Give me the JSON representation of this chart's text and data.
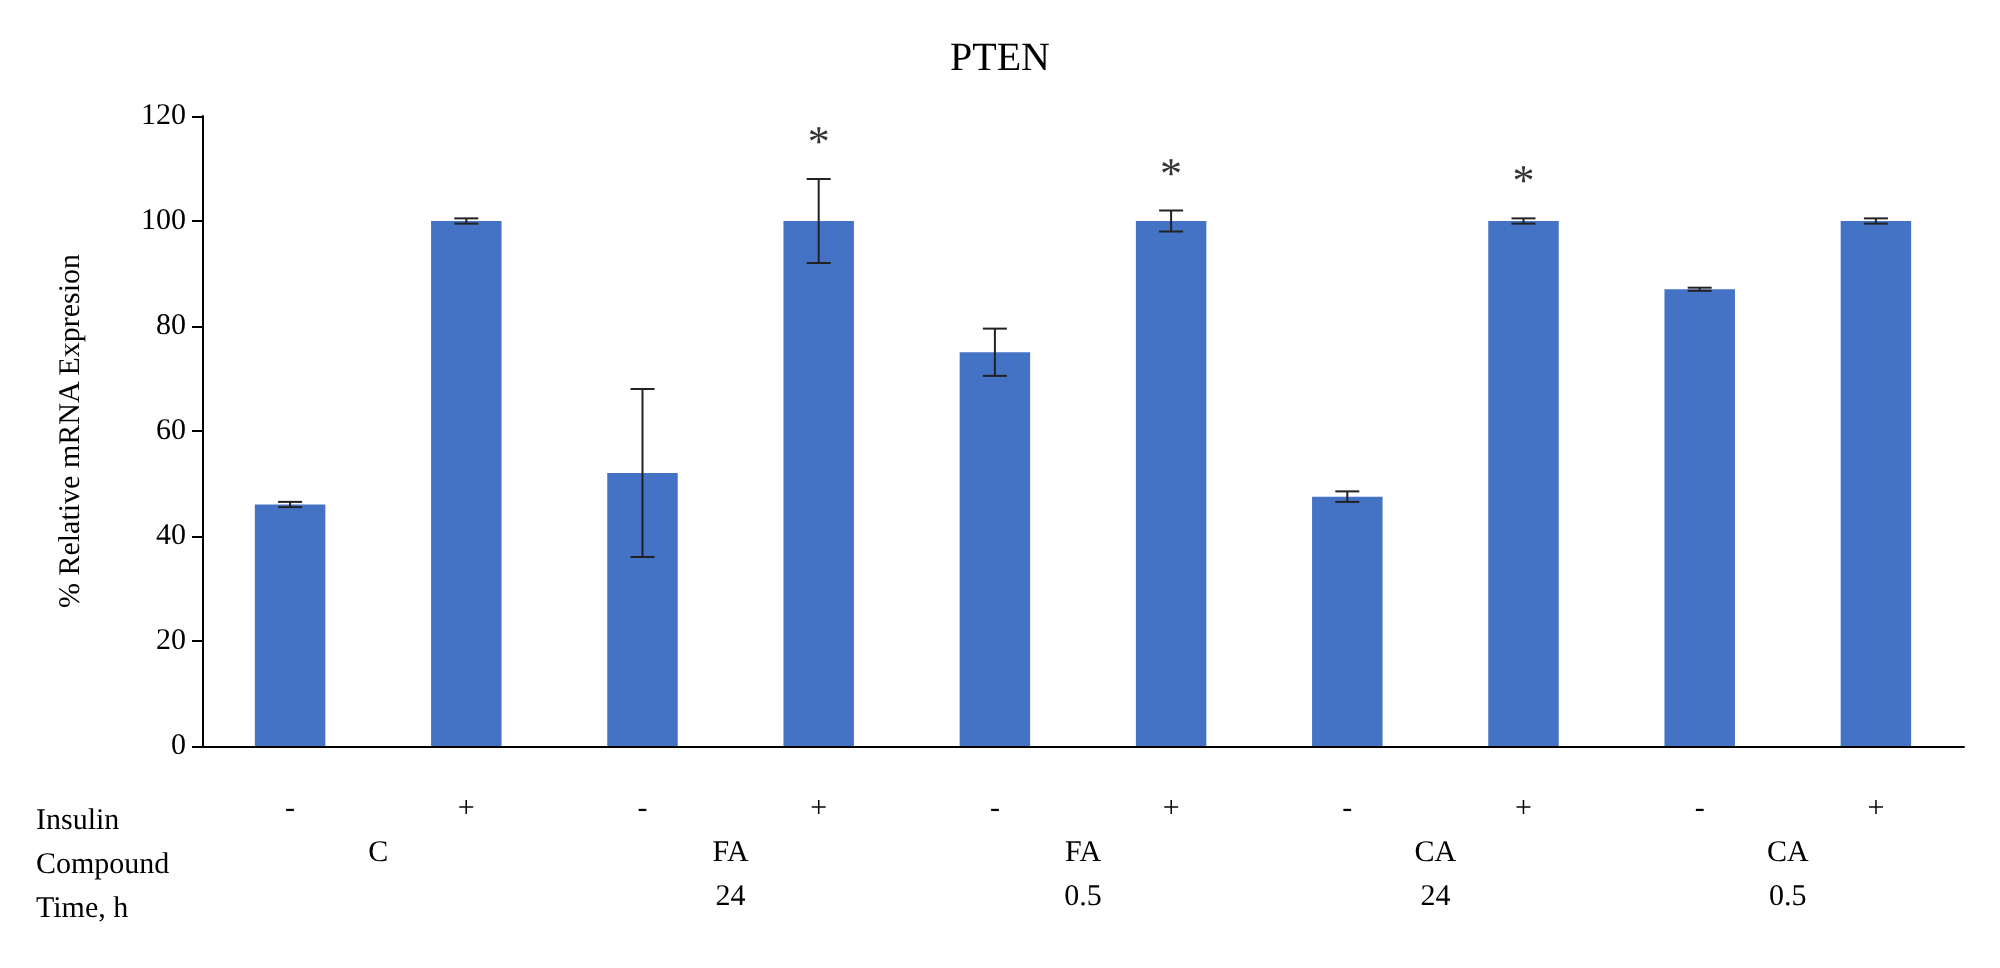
{
  "chart_data": {
    "type": "bar",
    "title": "PTEN",
    "ylabel": "% Relative mRNA Expresion",
    "categories": [
      "-",
      "+",
      "-",
      "+",
      "-",
      "+",
      "-",
      "+",
      "-",
      "+"
    ],
    "values": [
      46,
      100,
      52,
      100,
      75,
      100,
      47.5,
      100,
      87,
      100
    ],
    "errors": [
      0.5,
      0.5,
      16,
      8,
      4.5,
      2,
      1,
      0.5,
      0.3,
      0.5
    ],
    "value_labels": [
      null,
      null,
      null,
      "*",
      null,
      "*",
      null,
      "*",
      null,
      null
    ],
    "color": "#4472c4",
    "ylim": [
      0,
      120
    ],
    "yticks": [
      0,
      20,
      40,
      60,
      80,
      100,
      120
    ],
    "grid": false,
    "annotations": [
      "Insulin",
      "Compound",
      "Time, h",
      "C",
      "FA",
      "FA",
      "CA",
      "CA",
      "24",
      "0.5",
      "24",
      "0.5"
    ]
  }
}
